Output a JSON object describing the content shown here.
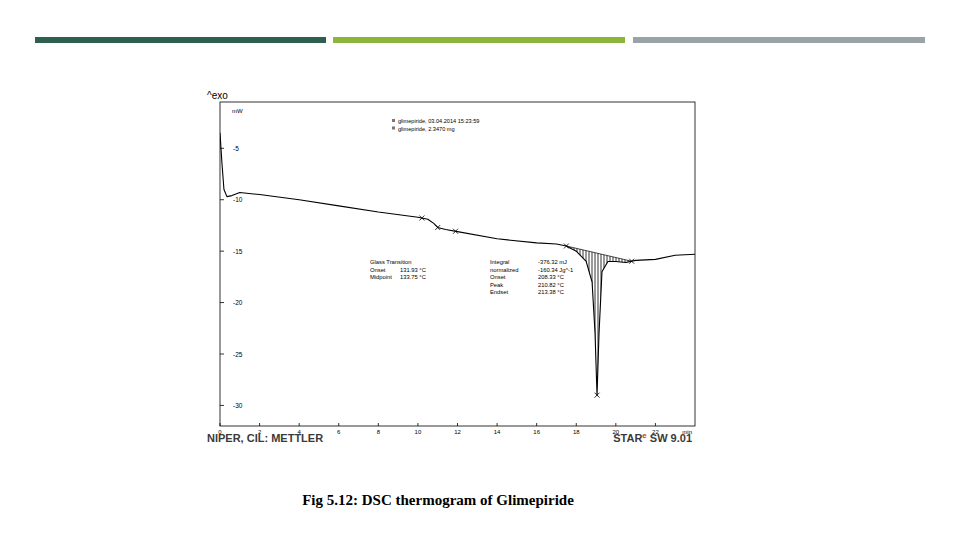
{
  "chart_data": {
    "type": "line",
    "corner_label": "^exo",
    "y_label": "mW",
    "x_label": "min",
    "x": [
      0.0,
      0.1,
      0.2,
      0.35,
      0.6,
      1.0,
      2.0,
      4.0,
      6.0,
      8.0,
      10.0,
      10.5,
      10.8,
      11.0,
      11.4,
      12.0,
      14.0,
      16.0,
      17.0,
      17.5,
      18.0,
      18.5,
      18.8,
      18.95,
      19.05,
      19.15,
      19.3,
      19.6,
      20.0,
      20.5,
      21.0,
      22.0,
      23.0,
      24.0
    ],
    "values": [
      -3.5,
      -6.5,
      -9.0,
      -9.7,
      -9.6,
      -9.3,
      -9.5,
      -10.0,
      -10.6,
      -11.2,
      -11.7,
      -11.9,
      -12.3,
      -12.7,
      -12.9,
      -13.1,
      -13.8,
      -14.2,
      -14.3,
      -14.5,
      -15.0,
      -16.0,
      -18.0,
      -23.0,
      -29.0,
      -23.0,
      -17.0,
      -16.0,
      -16.0,
      -16.1,
      -15.9,
      -15.8,
      -15.4,
      -15.3
    ],
    "color": "#000000",
    "xlim": [
      0,
      24
    ],
    "ylim": [
      -32,
      -0.5
    ],
    "xticks": [
      0,
      2,
      4,
      6,
      8,
      10,
      12,
      14,
      16,
      18,
      20,
      22
    ],
    "yticks": [
      -30,
      -25,
      -20,
      -15,
      -10,
      -5
    ],
    "grid": false,
    "sample_info": [
      "glimepiride, 03.04.2014 15:23:59",
      "glimepiride, 2.3470 mg"
    ],
    "annotations": [
      {
        "title": "Glass Transition",
        "rows": [
          {
            "label": "Onset",
            "value": "131.93 °C"
          },
          {
            "label": "Midpoint",
            "value": "133.75 °C"
          }
        ]
      },
      {
        "rows": [
          {
            "label": "Integral",
            "value": "-376.32 mJ"
          },
          {
            "label": "normalized",
            "value": "-160.34 Jg^-1"
          },
          {
            "label": "Onset",
            "value": "208.33 °C"
          },
          {
            "label": "Peak",
            "value": "210.82 °C"
          },
          {
            "label": "Endset",
            "value": "213.38 °C"
          }
        ]
      }
    ],
    "markers": [
      10.2,
      11.0,
      11.9,
      17.5,
      19.05,
      20.8
    ],
    "integration_range": [
      17.5,
      20.8
    ],
    "footer": {
      "left": "NIPER, CIL: METTLER",
      "brand": "STAR",
      "brand_mark": "e",
      "version": "SW 9.01"
    }
  },
  "caption": "Fig 5.12: DSC thermogram of Glimepiride"
}
